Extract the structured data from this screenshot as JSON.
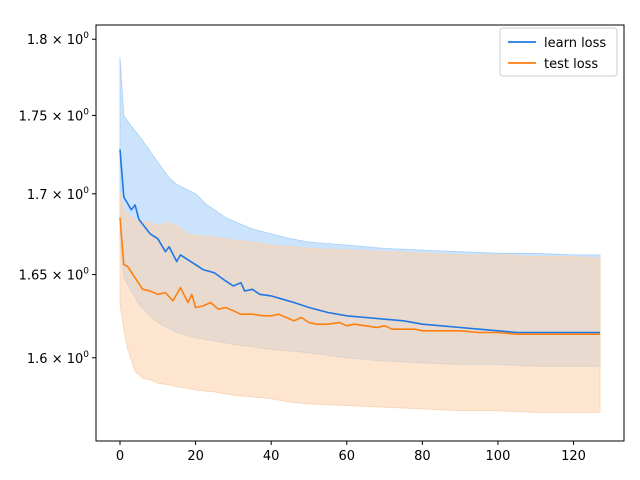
{
  "chart_data": {
    "type": "line",
    "title": "",
    "xlabel": "",
    "ylabel": "",
    "y_scale": "log",
    "xlim": [
      -6.35,
      133.35
    ],
    "ylim": [
      1.5515,
      1.8095
    ],
    "x_ticks": [
      0,
      20,
      40,
      60,
      80,
      100,
      120
    ],
    "x_tick_labels": [
      "0",
      "20",
      "40",
      "60",
      "80",
      "100",
      "120"
    ],
    "y_ticks": [
      1.6,
      1.65,
      1.7,
      1.75,
      1.8
    ],
    "y_tick_labels": [
      {
        "base": "1.6",
        "mult": "× 10",
        "exp": "0"
      },
      {
        "base": "1.65",
        "mult": "× 10",
        "exp": "0"
      },
      {
        "base": "1.7",
        "mult": "× 10",
        "exp": "0"
      },
      {
        "base": "1.75",
        "mult": "× 10",
        "exp": "0"
      },
      {
        "base": "1.8",
        "mult": "× 10",
        "exp": "0"
      }
    ],
    "legend_position": "top-right",
    "grid": false,
    "series": [
      {
        "name": "learn loss",
        "color": "#1f77e4",
        "band_color": "#a8d0f8",
        "mean": [
          [
            0,
            1.728
          ],
          [
            1,
            1.698
          ],
          [
            3,
            1.69
          ],
          [
            4,
            1.693
          ],
          [
            5,
            1.684
          ],
          [
            8,
            1.675
          ],
          [
            10,
            1.672
          ],
          [
            12,
            1.664
          ],
          [
            13,
            1.667
          ],
          [
            15,
            1.658
          ],
          [
            16,
            1.662
          ],
          [
            20,
            1.656
          ],
          [
            22,
            1.653
          ],
          [
            25,
            1.651
          ],
          [
            28,
            1.646
          ],
          [
            30,
            1.643
          ],
          [
            32,
            1.645
          ],
          [
            33,
            1.64
          ],
          [
            35,
            1.641
          ],
          [
            37,
            1.638
          ],
          [
            40,
            1.637
          ],
          [
            43,
            1.635
          ],
          [
            46,
            1.633
          ],
          [
            50,
            1.63
          ],
          [
            55,
            1.627
          ],
          [
            60,
            1.625
          ],
          [
            65,
            1.624
          ],
          [
            70,
            1.623
          ],
          [
            75,
            1.622
          ],
          [
            80,
            1.62
          ],
          [
            85,
            1.619
          ],
          [
            90,
            1.618
          ],
          [
            95,
            1.617
          ],
          [
            100,
            1.616
          ],
          [
            105,
            1.615
          ],
          [
            110,
            1.615
          ],
          [
            115,
            1.615
          ],
          [
            120,
            1.615
          ],
          [
            127,
            1.615
          ]
        ],
        "band_upper": [
          [
            0,
            1.788
          ],
          [
            1,
            1.75
          ],
          [
            3,
            1.743
          ],
          [
            5,
            1.737
          ],
          [
            8,
            1.727
          ],
          [
            10,
            1.72
          ],
          [
            13,
            1.71
          ],
          [
            15,
            1.706
          ],
          [
            20,
            1.7
          ],
          [
            23,
            1.693
          ],
          [
            25,
            1.69
          ],
          [
            28,
            1.685
          ],
          [
            30,
            1.683
          ],
          [
            35,
            1.678
          ],
          [
            40,
            1.675
          ],
          [
            45,
            1.672
          ],
          [
            50,
            1.67
          ],
          [
            55,
            1.669
          ],
          [
            60,
            1.668
          ],
          [
            65,
            1.667
          ],
          [
            70,
            1.666
          ],
          [
            80,
            1.665
          ],
          [
            90,
            1.664
          ],
          [
            100,
            1.663
          ],
          [
            110,
            1.663
          ],
          [
            120,
            1.662
          ],
          [
            127,
            1.662
          ]
        ],
        "band_lower": [
          [
            0,
            1.67
          ],
          [
            1,
            1.648
          ],
          [
            3,
            1.64
          ],
          [
            5,
            1.632
          ],
          [
            8,
            1.625
          ],
          [
            10,
            1.621
          ],
          [
            15,
            1.615
          ],
          [
            20,
            1.612
          ],
          [
            25,
            1.61
          ],
          [
            30,
            1.608
          ],
          [
            40,
            1.605
          ],
          [
            50,
            1.603
          ],
          [
            60,
            1.6
          ],
          [
            70,
            1.598
          ],
          [
            80,
            1.597
          ],
          [
            90,
            1.596
          ],
          [
            100,
            1.596
          ],
          [
            110,
            1.595
          ],
          [
            120,
            1.595
          ],
          [
            127,
            1.595
          ]
        ]
      },
      {
        "name": "test loss",
        "color": "#ff7f0e",
        "band_color": "#fbd3b1",
        "mean": [
          [
            0,
            1.685
          ],
          [
            1,
            1.656
          ],
          [
            2,
            1.655
          ],
          [
            4,
            1.648
          ],
          [
            6,
            1.641
          ],
          [
            8,
            1.64
          ],
          [
            10,
            1.638
          ],
          [
            12,
            1.639
          ],
          [
            14,
            1.634
          ],
          [
            16,
            1.642
          ],
          [
            18,
            1.633
          ],
          [
            19,
            1.638
          ],
          [
            20,
            1.63
          ],
          [
            22,
            1.631
          ],
          [
            24,
            1.633
          ],
          [
            26,
            1.629
          ],
          [
            28,
            1.63
          ],
          [
            30,
            1.628
          ],
          [
            32,
            1.626
          ],
          [
            35,
            1.626
          ],
          [
            38,
            1.625
          ],
          [
            40,
            1.625
          ],
          [
            42,
            1.626
          ],
          [
            44,
            1.624
          ],
          [
            46,
            1.622
          ],
          [
            48,
            1.624
          ],
          [
            50,
            1.621
          ],
          [
            52,
            1.62
          ],
          [
            55,
            1.62
          ],
          [
            58,
            1.621
          ],
          [
            60,
            1.619
          ],
          [
            62,
            1.62
          ],
          [
            65,
            1.619
          ],
          [
            68,
            1.618
          ],
          [
            70,
            1.619
          ],
          [
            72,
            1.617
          ],
          [
            75,
            1.617
          ],
          [
            78,
            1.617
          ],
          [
            80,
            1.616
          ],
          [
            85,
            1.616
          ],
          [
            90,
            1.616
          ],
          [
            95,
            1.615
          ],
          [
            100,
            1.615
          ],
          [
            105,
            1.614
          ],
          [
            110,
            1.614
          ],
          [
            115,
            1.614
          ],
          [
            120,
            1.614
          ],
          [
            127,
            1.614
          ]
        ],
        "band_upper": [
          [
            0,
            1.7
          ],
          [
            1,
            1.69
          ],
          [
            3,
            1.685
          ],
          [
            5,
            1.683
          ],
          [
            8,
            1.682
          ],
          [
            10,
            1.68
          ],
          [
            13,
            1.682
          ],
          [
            15,
            1.68
          ],
          [
            18,
            1.675
          ],
          [
            20,
            1.674
          ],
          [
            25,
            1.673
          ],
          [
            30,
            1.671
          ],
          [
            35,
            1.67
          ],
          [
            40,
            1.668
          ],
          [
            45,
            1.667
          ],
          [
            50,
            1.666
          ],
          [
            60,
            1.665
          ],
          [
            70,
            1.664
          ],
          [
            80,
            1.663
          ],
          [
            90,
            1.662
          ],
          [
            100,
            1.662
          ],
          [
            110,
            1.661
          ],
          [
            120,
            1.661
          ],
          [
            127,
            1.66
          ]
        ],
        "band_lower": [
          [
            0,
            1.632
          ],
          [
            1,
            1.617
          ],
          [
            2,
            1.605
          ],
          [
            4,
            1.592
          ],
          [
            6,
            1.588
          ],
          [
            8,
            1.587
          ],
          [
            10,
            1.585
          ],
          [
            13,
            1.584
          ],
          [
            15,
            1.583
          ],
          [
            18,
            1.582
          ],
          [
            20,
            1.581
          ],
          [
            25,
            1.58
          ],
          [
            30,
            1.578
          ],
          [
            35,
            1.577
          ],
          [
            40,
            1.576
          ],
          [
            45,
            1.574
          ],
          [
            50,
            1.573
          ],
          [
            60,
            1.572
          ],
          [
            70,
            1.571
          ],
          [
            80,
            1.57
          ],
          [
            90,
            1.569
          ],
          [
            100,
            1.569
          ],
          [
            110,
            1.568
          ],
          [
            120,
            1.568
          ],
          [
            127,
            1.568
          ]
        ]
      }
    ]
  }
}
